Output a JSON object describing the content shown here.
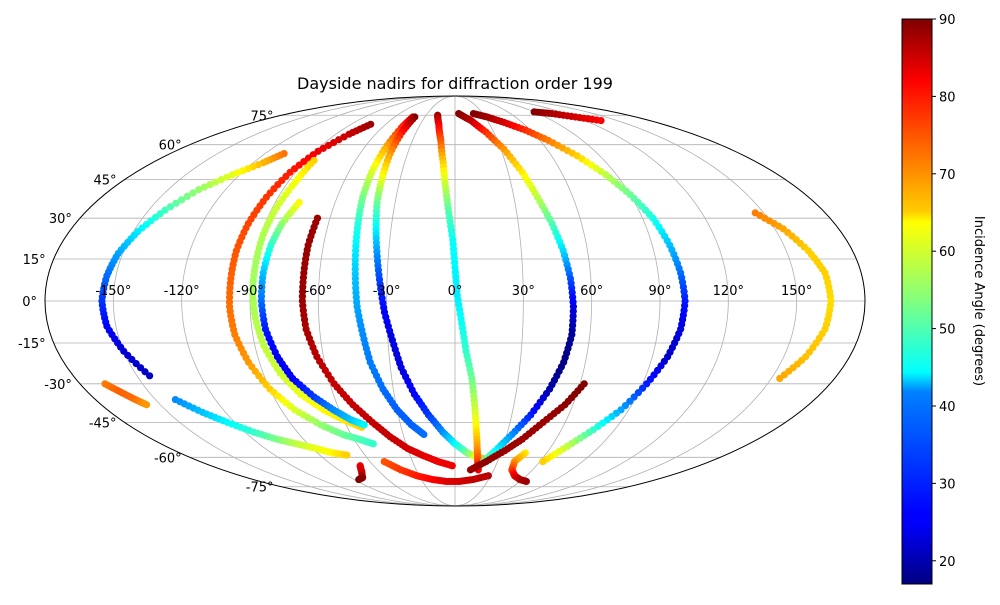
{
  "chart_data": {
    "type": "scatter",
    "projection": "mollweide",
    "title": "Dayside nadirs for diffraction order 199",
    "grid": true,
    "x_ticks": [
      "-150°",
      "-120°",
      "-90°",
      "-60°",
      "-30°",
      "0°",
      "30°",
      "60°",
      "90°",
      "120°",
      "150°"
    ],
    "x_tick_values": [
      -150,
      -120,
      -90,
      -60,
      -30,
      0,
      30,
      60,
      90,
      120,
      150
    ],
    "y_ticks": [
      "-75°",
      "-60°",
      "-45°",
      "-30°",
      "-15°",
      "0°",
      "15°",
      "30°",
      "45°",
      "60°",
      "75°"
    ],
    "y_tick_values": [
      -75,
      -60,
      -45,
      -30,
      -15,
      0,
      15,
      30,
      45,
      60,
      75
    ],
    "colorbar": {
      "label": "Incidence Angle (degrees)",
      "range": [
        17,
        90
      ],
      "ticks": [
        "20",
        "30",
        "40",
        "50",
        "60",
        "70",
        "80",
        "90"
      ],
      "tick_values": [
        20,
        30,
        40,
        50,
        60,
        70,
        80,
        90
      ],
      "colormap": "jet"
    },
    "series": [
      {
        "points": [
          [
            -108,
            56,
            73
          ],
          [
            -114,
            52,
            68
          ],
          [
            -124,
            47,
            61
          ],
          [
            -134,
            41,
            55
          ],
          [
            -142,
            33,
            49
          ],
          [
            -148,
            25,
            43
          ],
          [
            -152,
            17,
            38
          ],
          [
            -154,
            9,
            34
          ],
          [
            -155,
            0,
            30
          ],
          [
            -154,
            -9,
            26
          ],
          [
            -150,
            -18,
            23
          ],
          [
            -144,
            -27,
            22
          ]
        ]
      },
      {
        "points": [
          [
            -168,
            -30,
            72
          ],
          [
            -164,
            -33,
            74
          ],
          [
            -160,
            -36,
            73
          ],
          [
            -157,
            -38,
            70
          ]
        ]
      },
      {
        "points": [
          [
            -140,
            -36,
            36
          ],
          [
            -132,
            -41,
            40
          ],
          [
            -124,
            -45,
            44
          ],
          [
            -115,
            -49,
            48
          ],
          [
            -106,
            -52,
            53
          ],
          [
            -97,
            -54,
            58
          ],
          [
            -88,
            -56,
            61
          ],
          [
            -80,
            -58,
            63
          ],
          [
            -72,
            -59,
            66
          ]
        ]
      },
      {
        "points": [
          [
            -70,
            -64,
            82
          ],
          [
            -74,
            -67,
            84
          ],
          [
            -80,
            -70,
            88
          ],
          [
            -86,
            -71,
            90
          ]
        ]
      },
      {
        "points": [
          [
            -73,
            70,
            88
          ],
          [
            -80,
            65,
            85
          ],
          [
            -88,
            57,
            82
          ],
          [
            -93,
            48,
            79
          ],
          [
            -96,
            38,
            77
          ],
          [
            -98,
            28,
            76
          ],
          [
            -99,
            18,
            75
          ],
          [
            -99,
            8,
            74
          ],
          [
            -99,
            -2,
            73
          ],
          [
            -98,
            -12,
            72
          ],
          [
            -95,
            -22,
            70
          ],
          [
            -90,
            -32,
            66
          ],
          [
            -83,
            -40,
            60
          ],
          [
            -74,
            -46,
            55
          ],
          [
            -65,
            -50,
            52
          ],
          [
            -57,
            -52,
            50
          ],
          [
            -50,
            -54,
            48
          ]
        ]
      },
      {
        "points": [
          [
            -85,
            53,
            66
          ],
          [
            -86,
            44,
            62
          ],
          [
            -88,
            34,
            59
          ],
          [
            -89,
            24,
            57
          ],
          [
            -89,
            14,
            56
          ],
          [
            -89,
            4,
            56
          ],
          [
            -88,
            -6,
            57
          ],
          [
            -86,
            -16,
            58
          ],
          [
            -82,
            -26,
            59
          ],
          [
            -76,
            -34,
            61
          ],
          [
            -68,
            -40,
            63
          ],
          [
            -60,
            -44,
            64
          ],
          [
            -52,
            -47,
            66
          ]
        ]
      },
      {
        "points": [
          [
            -78,
            36,
            63
          ],
          [
            -82,
            28,
            55
          ],
          [
            -84,
            20,
            48
          ],
          [
            -85,
            10,
            40
          ],
          [
            -85,
            0,
            34
          ],
          [
            -84,
            -10,
            28
          ],
          [
            -81,
            -20,
            25
          ],
          [
            -77,
            -28,
            26
          ],
          [
            -70,
            -35,
            30
          ],
          [
            -63,
            -40,
            36
          ],
          [
            -56,
            -44,
            40
          ],
          [
            -50,
            -46,
            44
          ]
        ]
      },
      {
        "points": [
          [
            -66,
            30,
            88
          ],
          [
            -67,
            20,
            88
          ],
          [
            -67,
            10,
            88
          ],
          [
            -67,
            0,
            88
          ],
          [
            -66,
            -10,
            87
          ],
          [
            -63,
            -20,
            86
          ],
          [
            -58,
            -30,
            85
          ],
          [
            -52,
            -38,
            85
          ],
          [
            -45,
            -45,
            85
          ],
          [
            -38,
            -51,
            85
          ],
          [
            -30,
            -56,
            84
          ],
          [
            -22,
            -59,
            83
          ],
          [
            -12,
            -62,
            82
          ],
          [
            -2,
            -64,
            82
          ]
        ]
      },
      {
        "points": [
          [
            -42,
            74,
            85
          ],
          [
            -44,
            68,
            78
          ],
          [
            -46,
            58,
            68
          ],
          [
            -47,
            48,
            60
          ],
          [
            -47,
            38,
            53
          ],
          [
            -46,
            28,
            47
          ],
          [
            -45,
            18,
            43
          ],
          [
            -44,
            8,
            40
          ],
          [
            -43,
            -2,
            38
          ],
          [
            -41,
            -12,
            36
          ],
          [
            -39,
            -22,
            35
          ],
          [
            -35,
            -32,
            34
          ],
          [
            -30,
            -40,
            33
          ],
          [
            -24,
            -46,
            33
          ],
          [
            -18,
            -50,
            34
          ]
        ]
      },
      {
        "points": [
          [
            -40,
            74,
            90
          ],
          [
            -41,
            66,
            80
          ],
          [
            -41,
            56,
            70
          ],
          [
            -40,
            46,
            62
          ],
          [
            -39,
            36,
            52
          ],
          [
            -37,
            26,
            44
          ],
          [
            -35,
            16,
            36
          ],
          [
            -33,
            6,
            30
          ],
          [
            -31,
            -4,
            26
          ],
          [
            -28,
            -14,
            24
          ],
          [
            -25,
            -24,
            24
          ],
          [
            -20,
            -34,
            26
          ],
          [
            -14,
            -42,
            30
          ],
          [
            -7,
            -49,
            36
          ],
          [
            0,
            -54,
            44
          ],
          [
            8,
            -58,
            52
          ],
          [
            15,
            -60,
            62
          ],
          [
            22,
            -61,
            70
          ]
        ]
      },
      {
        "points": [
          [
            -18,
            75,
            88
          ],
          [
            -14,
            70,
            82
          ],
          [
            -10,
            62,
            75
          ],
          [
            -7,
            52,
            66
          ],
          [
            -5,
            42,
            58
          ],
          [
            -3,
            32,
            50
          ],
          [
            -1,
            22,
            45
          ],
          [
            0,
            12,
            44
          ],
          [
            1,
            2,
            43
          ],
          [
            3,
            -8,
            45
          ],
          [
            5,
            -18,
            48
          ],
          [
            8,
            -28,
            52
          ],
          [
            10,
            -38,
            58
          ],
          [
            12,
            -48,
            64
          ],
          [
            14,
            -56,
            70
          ],
          [
            16,
            -62,
            76
          ],
          [
            18,
            -66,
            82
          ]
        ]
      },
      {
        "points": [
          [
            -50,
            -62,
            75
          ],
          [
            -42,
            -66,
            77
          ],
          [
            -32,
            -69,
            79
          ],
          [
            -20,
            -71,
            81
          ],
          [
            -8,
            -72,
            83
          ],
          [
            4,
            -72,
            84
          ],
          [
            16,
            -71,
            85
          ],
          [
            28,
            -69,
            86
          ]
        ]
      },
      {
        "points": [
          [
            4,
            76,
            90
          ],
          [
            15,
            72,
            86
          ],
          [
            24,
            66,
            78
          ],
          [
            32,
            58,
            70
          ],
          [
            38,
            48,
            64
          ],
          [
            42,
            38,
            58
          ],
          [
            46,
            28,
            50
          ],
          [
            49,
            18,
            42
          ],
          [
            51,
            8,
            32
          ],
          [
            52,
            -2,
            24
          ],
          [
            52,
            -12,
            19
          ],
          [
            50,
            -22,
            17
          ],
          [
            46,
            -32,
            20
          ],
          [
            40,
            -42,
            28
          ],
          [
            33,
            -50,
            36
          ],
          [
            26,
            -57,
            44
          ],
          [
            20,
            -62,
            52
          ]
        ]
      },
      {
        "points": [
          [
            20,
            76,
            90
          ],
          [
            32,
            74,
            88
          ],
          [
            44,
            71,
            84
          ],
          [
            56,
            67,
            78
          ],
          [
            66,
            62,
            72
          ],
          [
            76,
            55,
            66
          ],
          [
            84,
            47,
            58
          ],
          [
            90,
            39,
            52
          ],
          [
            95,
            30,
            46
          ],
          [
            98,
            20,
            40
          ],
          [
            100,
            10,
            34
          ],
          [
            101,
            0,
            28
          ],
          [
            100,
            -10,
            24
          ],
          [
            97,
            -20,
            22
          ],
          [
            92,
            -30,
            28
          ],
          [
            86,
            -40,
            38
          ],
          [
            78,
            -48,
            48
          ],
          [
            70,
            -55,
            58
          ],
          [
            62,
            -62,
            66
          ]
        ]
      },
      {
        "points": [
          [
            62,
            -30,
            90
          ],
          [
            56,
            -38,
            89
          ],
          [
            48,
            -45,
            88
          ],
          [
            40,
            -52,
            88
          ],
          [
            32,
            -57,
            88
          ],
          [
            22,
            -62,
            89
          ],
          [
            12,
            -66,
            88
          ]
        ]
      },
      {
        "points": [
          [
            46,
            -58,
            64
          ],
          [
            42,
            -62,
            70
          ],
          [
            44,
            -66,
            76
          ],
          [
            50,
            -69,
            82
          ],
          [
            58,
            -71,
            86
          ],
          [
            66,
            -72,
            88
          ]
        ]
      },
      {
        "points": [
          [
            90,
            77,
            90
          ],
          [
            105,
            76,
            87
          ],
          [
            120,
            74,
            84
          ],
          [
            135,
            72,
            81
          ]
        ]
      },
      {
        "points": [
          [
            146,
            32,
            72
          ],
          [
            154,
            26,
            69
          ],
          [
            160,
            18,
            66
          ],
          [
            164,
            10,
            66
          ],
          [
            165,
            0,
            65
          ],
          [
            164,
            -10,
            66
          ],
          [
            160,
            -20,
            67
          ],
          [
            154,
            -28,
            69
          ]
        ]
      }
    ]
  }
}
